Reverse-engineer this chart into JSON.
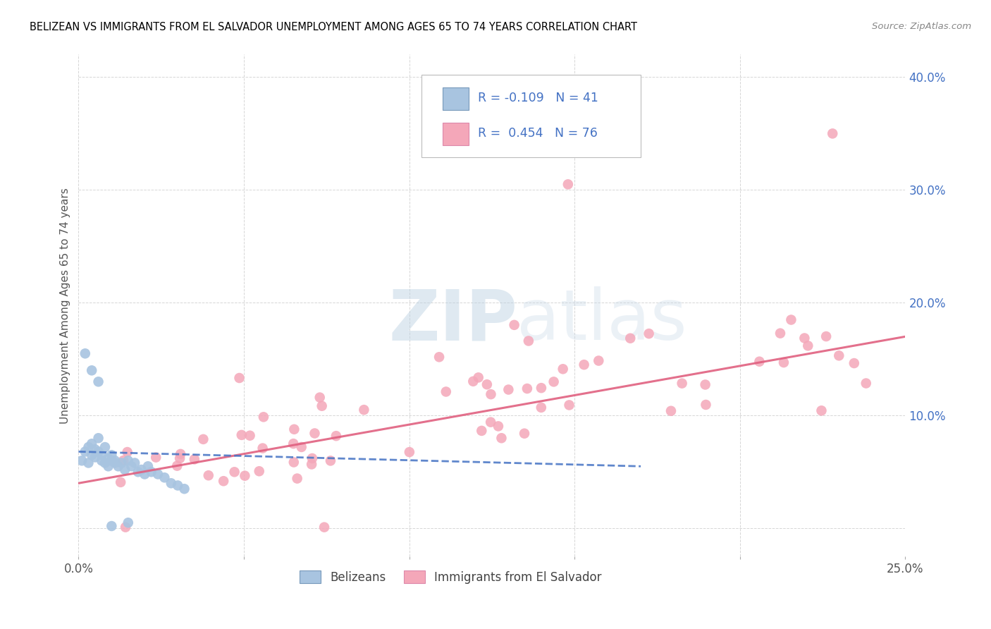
{
  "title": "BELIZEAN VS IMMIGRANTS FROM EL SALVADOR UNEMPLOYMENT AMONG AGES 65 TO 74 YEARS CORRELATION CHART",
  "source": "Source: ZipAtlas.com",
  "ylabel": "Unemployment Among Ages 65 to 74 years",
  "xmin": 0.0,
  "xmax": 0.25,
  "ymin": -0.025,
  "ymax": 0.42,
  "belizean_color": "#a8c4e0",
  "salvador_color": "#f4a7b9",
  "belizean_line_color": "#4472c4",
  "salvador_line_color": "#e06080",
  "belizean_R": -0.109,
  "belizean_N": 41,
  "salvador_R": 0.454,
  "salvador_N": 76,
  "legend_label_1": "Belizeans",
  "legend_label_2": "Immigrants from El Salvador",
  "watermark_zip": "ZIP",
  "watermark_atlas": "atlas"
}
